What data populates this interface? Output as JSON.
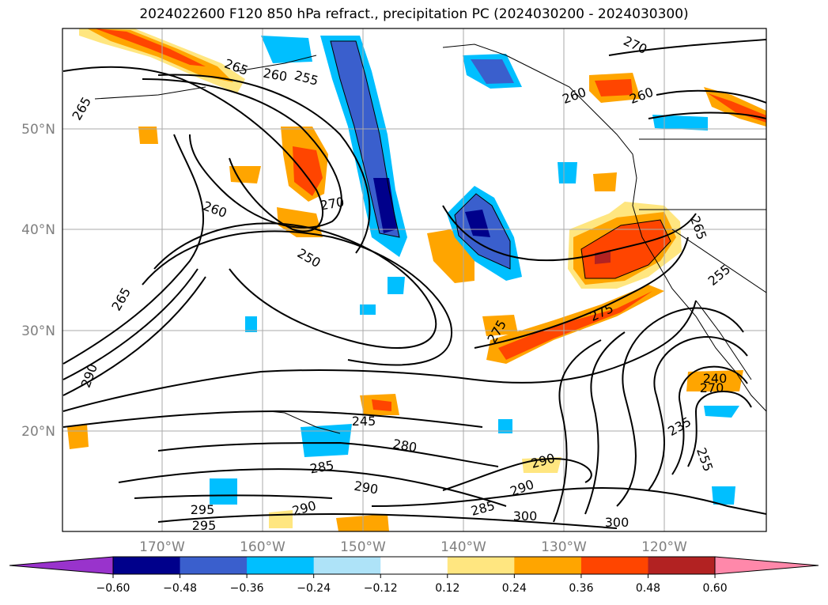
{
  "title": "2024022600 F120 850 hPa refract., precipitation PC (2024030200 - 2024030300)",
  "map": {
    "lat_labels": [
      "50°N",
      "40°N",
      "30°N",
      "20°N"
    ],
    "lon_labels": [
      "170°W",
      "160°W",
      "150°W",
      "140°W",
      "130°W",
      "120°W"
    ],
    "contour_labels": [
      "265",
      "260",
      "255",
      "265",
      "270",
      "260",
      "265",
      "270",
      "260",
      "250",
      "265",
      "260",
      "290",
      "275",
      "255",
      "275",
      "270",
      "240",
      "235",
      "255",
      "245",
      "280",
      "285",
      "290",
      "295",
      "290",
      "285",
      "290",
      "300",
      "295",
      "290",
      "300"
    ]
  },
  "colorbar": {
    "ticks": [
      "−0.60",
      "−0.48",
      "−0.36",
      "−0.24",
      "−0.12",
      "0.12",
      "0.24",
      "0.36",
      "0.48",
      "0.60"
    ],
    "colors": {
      "under": "#9933cc",
      "bins": [
        "#00008b",
        "#3a5fcd",
        "#00bfff",
        "#aee3f8",
        "#ffffff",
        "#ffe680",
        "#ffa500",
        "#ff4500",
        "#b22222"
      ],
      "over": "#ff88aa"
    }
  }
}
